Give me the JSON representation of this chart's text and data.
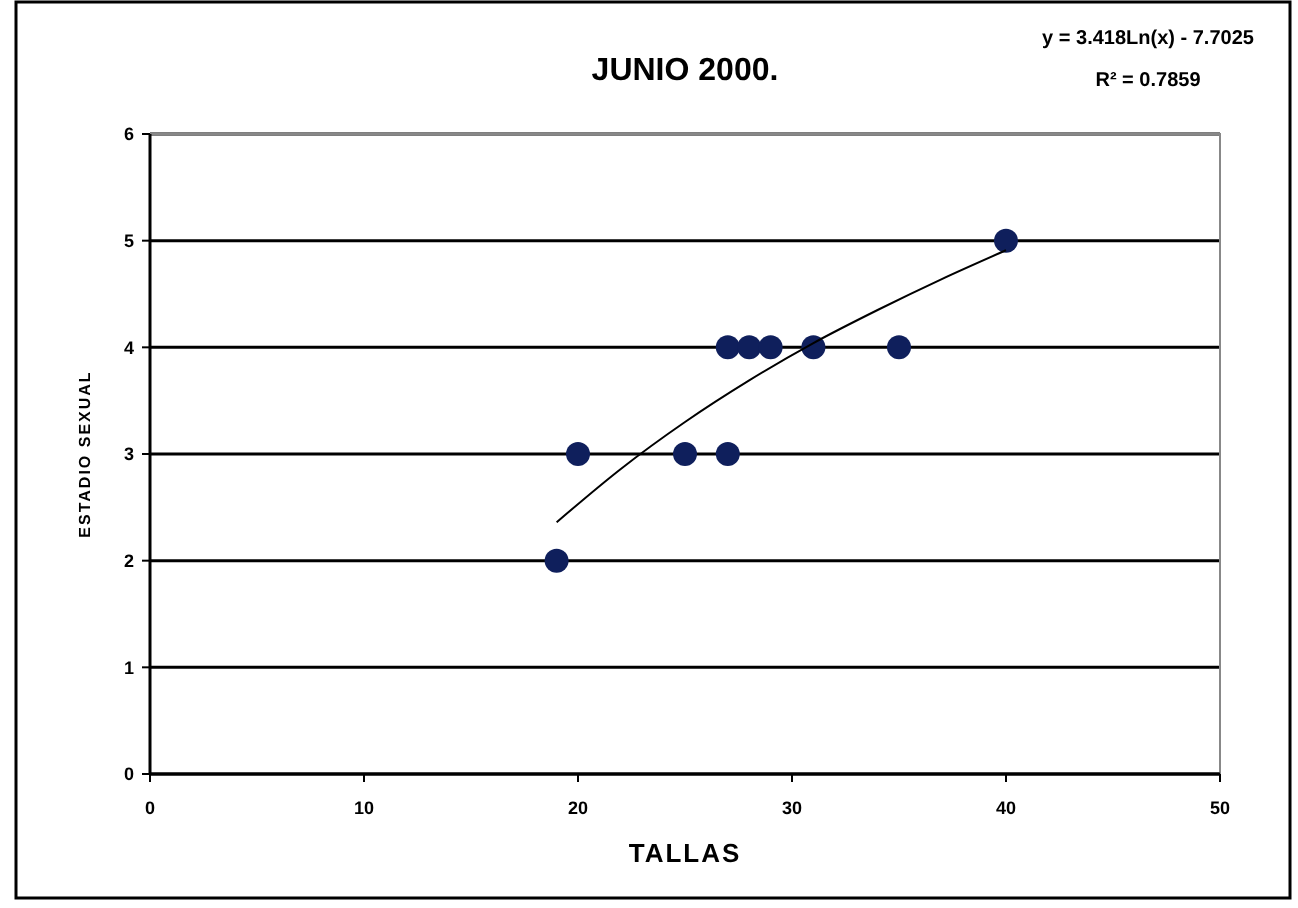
{
  "chart_data": {
    "type": "scatter",
    "title": "JUNIO 2000.",
    "xlabel": "TALLAS",
    "ylabel": "ESTADIO SEXUAL",
    "annotations": [
      "y = 3.418Ln(x) - 7.7025",
      "R² = 0.7859"
    ],
    "x": [
      19,
      20,
      25,
      27,
      27,
      28,
      29,
      31,
      35,
      40
    ],
    "series": [
      {
        "color": "#0f1f5c",
        "marker": "circle",
        "values": [
          2,
          3,
          3,
          3,
          4,
          4,
          4,
          4,
          4,
          5
        ]
      },
      {
        "type": "line",
        "color": "#000000",
        "marker": "none",
        "x": [
          19,
          22,
          25,
          28,
          31,
          34,
          37,
          40
        ],
        "values": [
          2.36,
          2.86,
          3.3,
          3.69,
          4.04,
          4.35,
          4.64,
          4.91
        ]
      }
    ],
    "xlim": [
      0,
      50
    ],
    "ylim": [
      0,
      6
    ],
    "xticks": [
      0,
      10,
      20,
      30,
      40,
      50
    ],
    "yticks": [
      0,
      1,
      2,
      3,
      4,
      5,
      6
    ],
    "grid": "y"
  }
}
